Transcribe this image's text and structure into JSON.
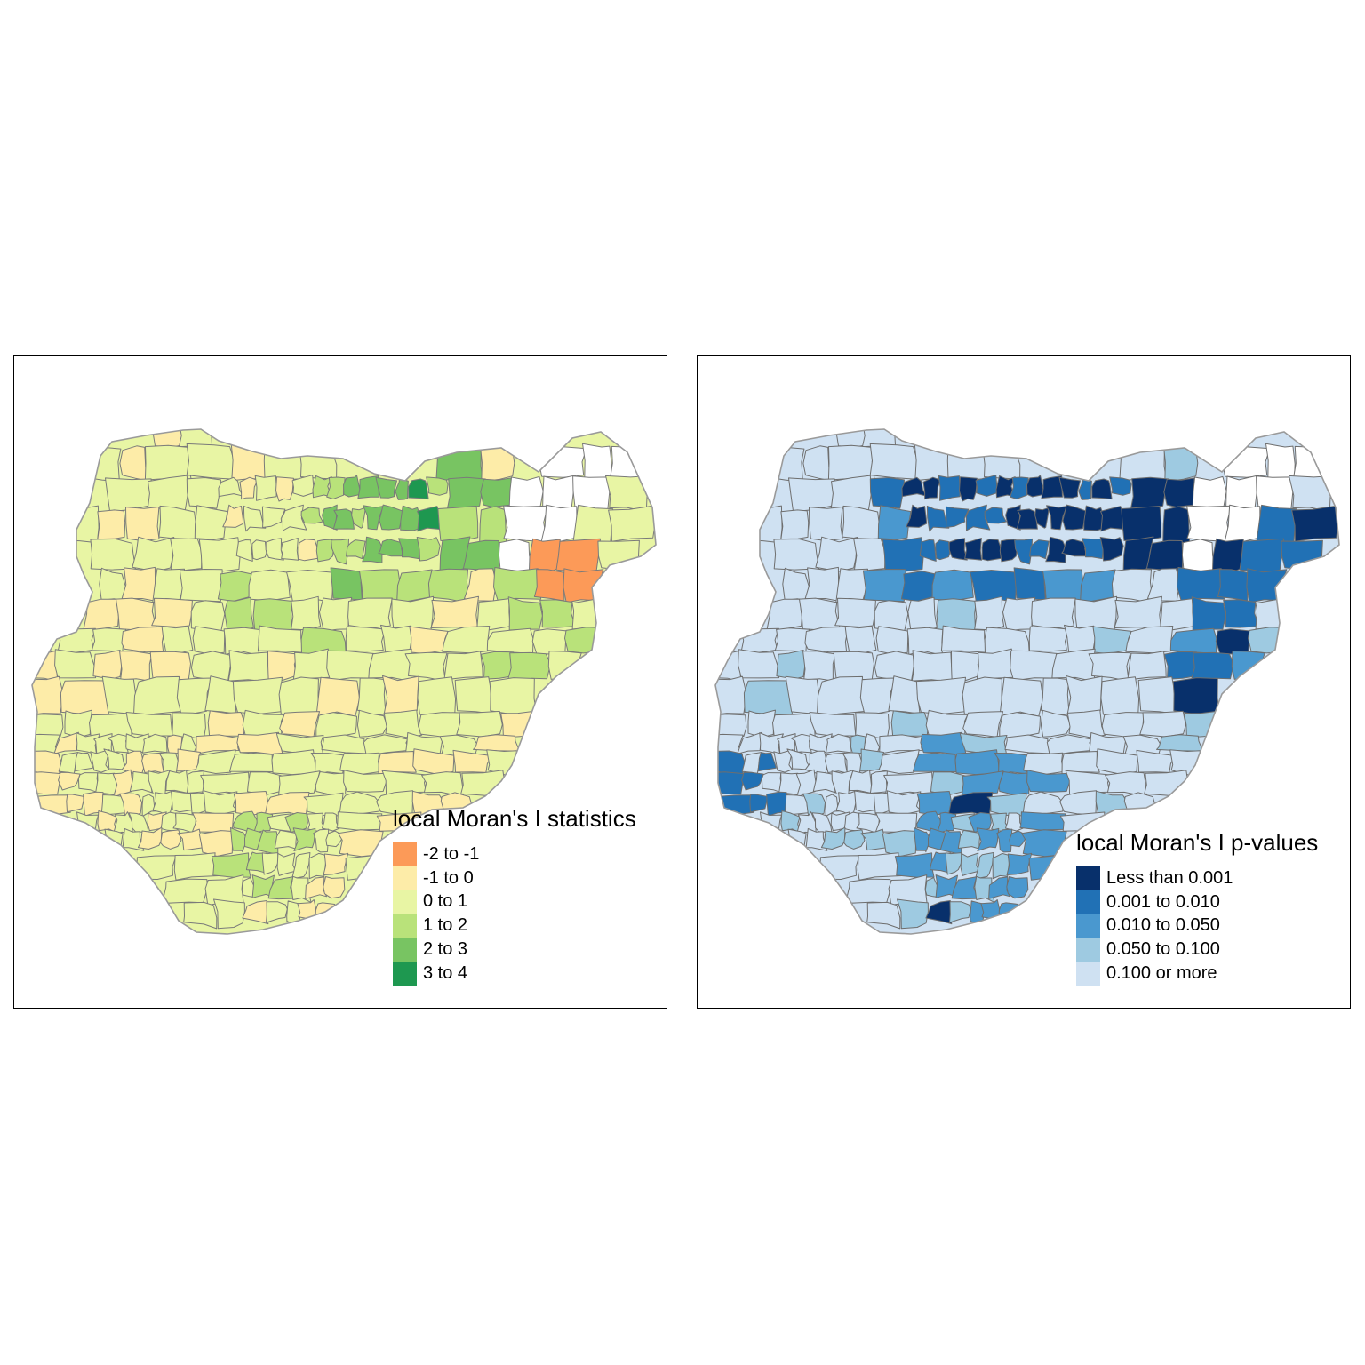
{
  "maps": [
    {
      "legend": {
        "title": "local Moran's I statistics",
        "items": [
          {
            "label": "-2 to -1",
            "color": "#fc9a58"
          },
          {
            "label": "-1 to 0",
            "color": "#fdeca8"
          },
          {
            "label": "0 to 1",
            "color": "#e8f5a4"
          },
          {
            "label": "1 to 2",
            "color": "#b9e27a"
          },
          {
            "label": "2 to 3",
            "color": "#78c462"
          },
          {
            "label": "3 to 4",
            "color": "#1e9850"
          }
        ]
      },
      "base_color": "#e8f5a4",
      "missing_color": "#ffffff",
      "border_color": "#7a7a7a"
    },
    {
      "legend": {
        "title": "local Moran's I p-values",
        "items": [
          {
            "label": "Less than 0.001",
            "color": "#08306b"
          },
          {
            "label": "0.001 to 0.010",
            "color": "#2171b5"
          },
          {
            "label": "0.010 to 0.050",
            "color": "#4a98cf"
          },
          {
            "label": "0.050 to 0.100",
            "color": "#9ecae1"
          },
          {
            "label": "0.100 or more",
            "color": "#cfe1f2"
          }
        ]
      },
      "base_color": "#cfe1f2",
      "missing_color": "#ffffff",
      "border_color": "#6e6e6e"
    }
  ]
}
